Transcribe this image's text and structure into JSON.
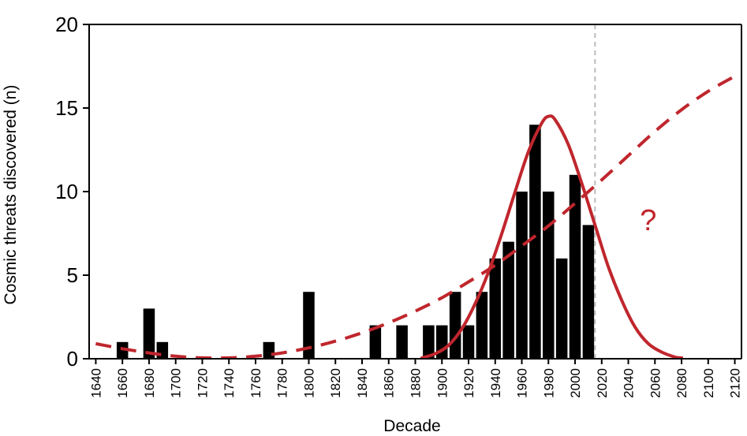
{
  "chart_data": {
    "type": "bar",
    "xlabel": "Decade",
    "ylabel": "Cosmic threats discovered (n)",
    "xlim": [
      1635,
      2125
    ],
    "ylim": [
      0,
      20
    ],
    "y_ticks": [
      0,
      5,
      10,
      15,
      20
    ],
    "x_ticks": [
      1640,
      1660,
      1680,
      1700,
      1720,
      1740,
      1760,
      1780,
      1800,
      1820,
      1840,
      1860,
      1880,
      1900,
      1920,
      1940,
      1960,
      1980,
      2000,
      2020,
      2040,
      2060,
      2080,
      2100,
      2120
    ],
    "grid": false,
    "legend": "none",
    "bars": {
      "x": [
        1660,
        1680,
        1690,
        1770,
        1800,
        1850,
        1870,
        1890,
        1900,
        1910,
        1920,
        1930,
        1940,
        1950,
        1960,
        1970,
        1980,
        1990,
        2000,
        2010
      ],
      "values": [
        1,
        3,
        1,
        1,
        4,
        2,
        2,
        2,
        2,
        4,
        2,
        4,
        6,
        7,
        10,
        14,
        10,
        6,
        11,
        8
      ],
      "color": "#000000"
    },
    "gaussian_fit": {
      "style": "solid",
      "color": "#c0262d",
      "peak_x": 1980,
      "peak_y": 14.5,
      "x": [
        1885,
        1895,
        1905,
        1915,
        1925,
        1935,
        1945,
        1955,
        1965,
        1975,
        1980,
        1985,
        1995,
        2005,
        2015,
        2025,
        2035,
        2045,
        2055,
        2065,
        2075,
        2080
      ],
      "values": [
        0.05,
        0.3,
        0.8,
        1.8,
        3.3,
        5.2,
        7.5,
        10.0,
        12.4,
        14.1,
        14.5,
        14.3,
        12.8,
        10.5,
        8.0,
        5.5,
        3.5,
        1.9,
        0.9,
        0.4,
        0.1,
        0.05
      ]
    },
    "trend_fit": {
      "style": "dashed",
      "color": "#c0262d",
      "x": [
        1640,
        1660,
        1680,
        1700,
        1720,
        1740,
        1760,
        1780,
        1800,
        1820,
        1840,
        1860,
        1880,
        1900,
        1920,
        1940,
        1960,
        1980,
        2000,
        2020,
        2040,
        2060,
        2080,
        2100,
        2120
      ],
      "values": [
        0.9,
        0.6,
        0.35,
        0.15,
        0.05,
        0.05,
        0.15,
        0.35,
        0.65,
        1.05,
        1.55,
        2.15,
        2.85,
        3.65,
        4.6,
        5.6,
        6.75,
        7.95,
        9.3,
        10.7,
        12.15,
        13.6,
        14.9,
        16.0,
        16.9
      ]
    },
    "reference_line": {
      "x": 2015,
      "style": "dashed",
      "color": "#bbbbbb"
    },
    "annotation": {
      "text": "?",
      "x": 2055,
      "y": 8.3,
      "color": "#c0262d"
    }
  }
}
